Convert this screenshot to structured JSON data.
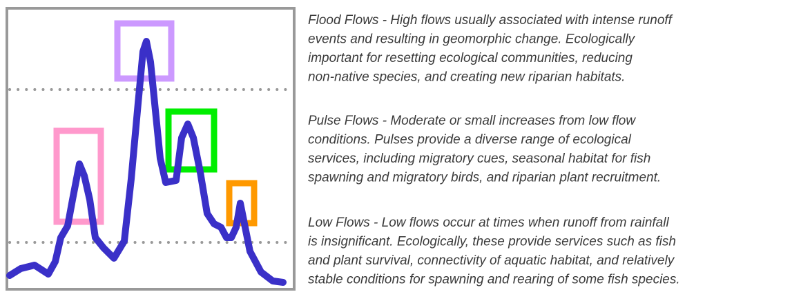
{
  "paragraphs": [
    {
      "lines": [
        "Flood Flows - High flows usually associated with intense runoff",
        "events and resulting in geomorphic change.  Ecologically",
        "important for resetting ecological communities, reducing",
        "non-native species, and creating new riparian habitats."
      ]
    },
    {
      "lines": [
        "Pulse Flows - Moderate or small increases from low flow",
        "conditions.  Pulses provide a diverse range of ecological",
        "services, including migratory cues, seasonal habitat for fish",
        "spawning and migratory birds, and riparian plant recruitment."
      ]
    },
    {
      "lines": [
        "Low Flows - Low flows occur at times when runoff from rainfall",
        "is insignificant.  Ecologically, these provide services such as fish",
        "and plant survival, connectivity of aquatic habitat, and relatively",
        "stable conditions for spawning and rearing of some fish species."
      ]
    }
  ]
}
